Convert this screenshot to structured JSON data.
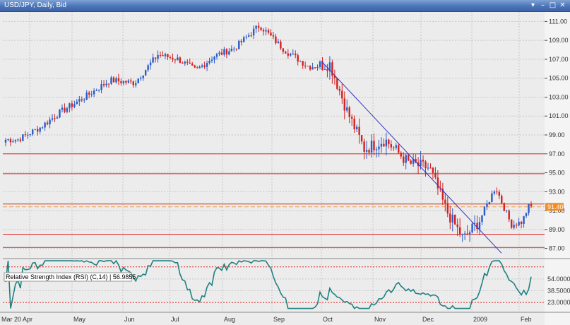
{
  "window": {
    "title": "USD/JPY, Daily, Bid",
    "buttons": {
      "menu": "▾",
      "minimize": "–",
      "maximize": "□",
      "close": "✕"
    }
  },
  "price_axis": {
    "ticks": [
      "111.00",
      "109.00",
      "107.00",
      "105.00",
      "103.00",
      "101.00",
      "99.00",
      "97.00",
      "95.00",
      "93.00",
      "91.00",
      "89.00",
      "87.00"
    ],
    "current_price_label": "91.40",
    "current_price_color": "#f08c28"
  },
  "rsi_panel": {
    "legend": "Relative Strength Index (RSI) (C,14) | 56.9855",
    "ticks": [
      "54.0000",
      "38.5000",
      "23.0000"
    ]
  },
  "time_axis": {
    "labels": [
      "Mar 20 Apr",
      "May",
      "Jun",
      "Jul",
      "Aug",
      "Sep",
      "Oct",
      "Nov",
      "Dec",
      "2009",
      "Feb"
    ]
  },
  "colors": {
    "bull_candle": "#2a5bc8",
    "bear_candle": "#d42020",
    "hline": "#e02020",
    "trendline": "#3030c0",
    "rsi_line": "#1f8080",
    "plot_bg": "#ececec",
    "grid": "#c8c8c8"
  },
  "chart_data": {
    "type": "candlestick",
    "symbol": "USD/JPY",
    "timeframe": "Daily",
    "price": "Bid",
    "ylim": [
      86,
      112
    ],
    "month_markers": [
      "Apr",
      "May",
      "Jun",
      "Jul",
      "Aug",
      "Sep",
      "Oct",
      "Nov",
      "Dec",
      "2009",
      "Feb"
    ],
    "close_path": [
      {
        "month": "Mar",
        "close": 98.5
      },
      {
        "month": "Apr",
        "close": 99.8
      },
      {
        "month": "Apr",
        "close": 101.5
      },
      {
        "month": "May",
        "close": 103.0
      },
      {
        "month": "May",
        "close": 104.8
      },
      {
        "month": "Jun",
        "close": 104.5
      },
      {
        "month": "Jun",
        "close": 107.5
      },
      {
        "month": "Jul",
        "close": 107.0
      },
      {
        "month": "Jul",
        "close": 105.8
      },
      {
        "month": "Jul",
        "close": 107.3
      },
      {
        "month": "Aug",
        "close": 108.2
      },
      {
        "month": "Aug",
        "close": 110.6
      },
      {
        "month": "Sep",
        "close": 108.0
      },
      {
        "month": "Sep",
        "close": 106.2
      },
      {
        "month": "Oct",
        "close": 106.5
      },
      {
        "month": "Oct",
        "close": 101.5
      },
      {
        "month": "Oct",
        "close": 97.5
      },
      {
        "month": "Nov",
        "close": 98.5
      },
      {
        "month": "Nov",
        "close": 96.0
      },
      {
        "month": "Dec",
        "close": 95.5
      },
      {
        "month": "Dec",
        "close": 91.0
      },
      {
        "month": "Dec",
        "close": 88.0
      },
      {
        "month": "2009",
        "close": 90.0
      },
      {
        "month": "2009",
        "close": 93.5
      },
      {
        "month": "2009",
        "close": 89.5
      },
      {
        "month": "Feb",
        "close": 89.8
      },
      {
        "month": "Feb",
        "close": 91.4
      }
    ],
    "horizontal_lines": [
      97.0,
      94.9,
      91.7,
      88.5,
      87.1
    ],
    "current_price": 91.4,
    "trendline": {
      "from": {
        "month": "Oct",
        "price": 106.8
      },
      "to": {
        "month": "2009",
        "price": 86.5
      }
    },
    "rsi": {
      "period": 14,
      "value": 56.9855,
      "ticks": [
        54.0,
        38.5,
        23.0
      ]
    }
  }
}
